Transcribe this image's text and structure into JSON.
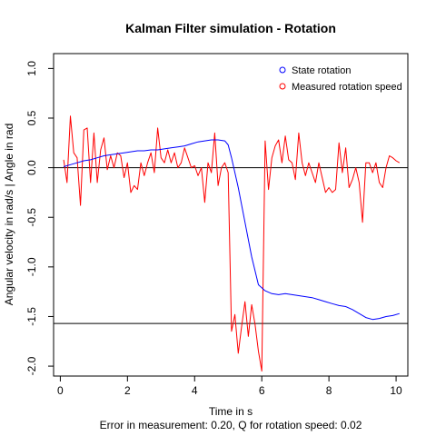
{
  "chart_data": {
    "type": "line",
    "title": "Kalman Filter simulation - Rotation",
    "xlabel": "Time in s",
    "subtitle": "Error in measurement: 0.20, Q for rotation speed: 0.02",
    "ylabel": "Angular velocity in rad/s | Angle in rad",
    "xlim": [
      -0.2,
      10.35
    ],
    "ylim": [
      -2.1,
      1.15
    ],
    "x_ticks": [
      0,
      2,
      4,
      6,
      8,
      10
    ],
    "y_ticks": [
      -2.0,
      -1.5,
      -1.0,
      -0.5,
      0.0,
      0.5,
      1.0
    ],
    "x_tick_labels": [
      "0",
      "2",
      "4",
      "6",
      "8",
      "10"
    ],
    "y_tick_labels": [
      "-2.0",
      "-1.5",
      "-1.0",
      "-0.5",
      "0.0",
      "0.5",
      "1.0"
    ],
    "reference_lines": [
      0.0,
      -1.57
    ],
    "grid": false,
    "legend_position": "top-right",
    "series": [
      {
        "name": "State rotation",
        "color": "#0000ff",
        "x": [
          0.1,
          0.3,
          0.5,
          0.7,
          0.9,
          1.1,
          1.3,
          1.5,
          1.7,
          1.9,
          2.1,
          2.3,
          2.5,
          2.7,
          2.9,
          3.1,
          3.3,
          3.5,
          3.7,
          3.9,
          4.1,
          4.3,
          4.5,
          4.7,
          4.9,
          5.0,
          5.1,
          5.3,
          5.5,
          5.7,
          5.9,
          6.1,
          6.3,
          6.5,
          6.7,
          6.9,
          7.1,
          7.3,
          7.5,
          7.7,
          7.9,
          8.1,
          8.3,
          8.5,
          8.7,
          8.9,
          9.1,
          9.3,
          9.5,
          9.7,
          9.9,
          10.1
        ],
        "y": [
          0.01,
          0.03,
          0.05,
          0.07,
          0.08,
          0.1,
          0.12,
          0.13,
          0.14,
          0.15,
          0.16,
          0.17,
          0.17,
          0.18,
          0.18,
          0.19,
          0.2,
          0.21,
          0.22,
          0.24,
          0.26,
          0.27,
          0.28,
          0.28,
          0.27,
          0.23,
          0.1,
          -0.2,
          -0.55,
          -0.9,
          -1.18,
          -1.24,
          -1.27,
          -1.28,
          -1.27,
          -1.28,
          -1.29,
          -1.3,
          -1.31,
          -1.33,
          -1.35,
          -1.37,
          -1.39,
          -1.4,
          -1.43,
          -1.47,
          -1.51,
          -1.53,
          -1.52,
          -1.5,
          -1.49,
          -1.47
        ]
      },
      {
        "name": "Measured rotation speed",
        "color": "#ff0000",
        "x": [
          0.1,
          0.2,
          0.3,
          0.4,
          0.5,
          0.6,
          0.7,
          0.8,
          0.9,
          1.0,
          1.1,
          1.2,
          1.3,
          1.4,
          1.5,
          1.6,
          1.7,
          1.8,
          1.9,
          2.0,
          2.1,
          2.2,
          2.3,
          2.4,
          2.5,
          2.6,
          2.7,
          2.8,
          2.9,
          3.0,
          3.1,
          3.2,
          3.3,
          3.4,
          3.5,
          3.6,
          3.7,
          3.8,
          3.9,
          4.0,
          4.1,
          4.2,
          4.3,
          4.4,
          4.5,
          4.6,
          4.7,
          4.8,
          4.9,
          5.0,
          5.1,
          5.2,
          5.3,
          5.4,
          5.5,
          5.6,
          5.7,
          5.8,
          5.9,
          6.0,
          6.1,
          6.2,
          6.3,
          6.4,
          6.5,
          6.6,
          6.7,
          6.8,
          6.9,
          7.0,
          7.1,
          7.2,
          7.3,
          7.4,
          7.5,
          7.6,
          7.7,
          7.8,
          7.9,
          8.0,
          8.1,
          8.2,
          8.3,
          8.4,
          8.5,
          8.6,
          8.7,
          8.8,
          8.9,
          9.0,
          9.1,
          9.2,
          9.3,
          9.4,
          9.5,
          9.6,
          9.7,
          9.8,
          9.9,
          10.0,
          10.1
        ],
        "y": [
          0.08,
          -0.15,
          0.52,
          0.15,
          0.1,
          -0.38,
          0.38,
          0.4,
          -0.15,
          0.35,
          -0.15,
          0.18,
          0.3,
          -0.02,
          0.12,
          0.0,
          0.15,
          0.12,
          -0.1,
          0.05,
          -0.25,
          -0.18,
          -0.22,
          0.05,
          -0.08,
          0.05,
          0.15,
          -0.05,
          0.4,
          0.1,
          0.05,
          0.18,
          0.05,
          0.15,
          0.0,
          0.05,
          0.2,
          0.1,
          0.0,
          0.02,
          -0.08,
          0.0,
          -0.35,
          0.05,
          -0.05,
          0.35,
          -0.18,
          0.0,
          0.05,
          -0.05,
          -1.65,
          -1.48,
          -1.87,
          -1.6,
          -1.35,
          -1.7,
          -1.38,
          -1.58,
          -1.85,
          -2.05,
          0.27,
          -0.22,
          0.1,
          0.22,
          0.28,
          0.05,
          0.32,
          0.08,
          0.05,
          -0.12,
          0.35,
          0.05,
          -0.08,
          0.05,
          -0.05,
          -0.15,
          0.05,
          -0.1,
          -0.25,
          -0.2,
          -0.25,
          -0.22,
          0.25,
          -0.05,
          0.2,
          -0.2,
          -0.12,
          0.0,
          -0.15,
          -0.55,
          0.05,
          0.05,
          -0.05,
          0.05,
          -0.15,
          -0.2,
          0.0,
          0.12,
          0.1,
          0.07,
          0.05
        ]
      }
    ]
  }
}
